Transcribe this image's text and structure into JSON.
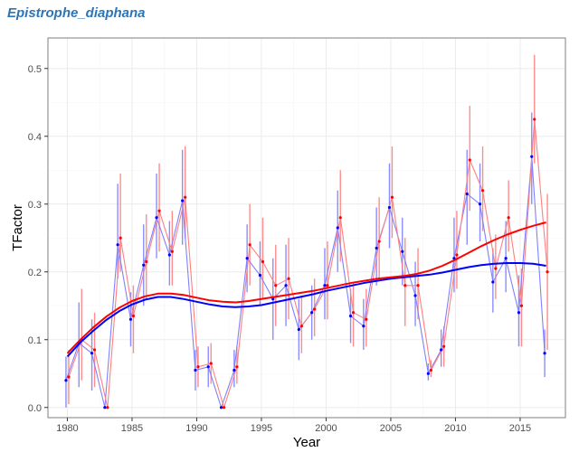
{
  "title": "Epistrophe_diaphana",
  "chart_data": {
    "type": "line",
    "xlabel": "Year",
    "ylabel": "TFactor",
    "xlim": [
      1978.5,
      2018.5
    ],
    "ylim": [
      -0.015,
      0.545
    ],
    "x_ticks": [
      1980,
      1985,
      1990,
      1995,
      2000,
      2005,
      2010,
      2015
    ],
    "y_ticks": [
      0.0,
      0.1,
      0.2,
      0.3,
      0.4,
      0.5
    ],
    "grid": true,
    "colors": {
      "blue_series": "#0000ff",
      "blue_light": "#8080ff",
      "red_series": "#ff0000",
      "red_light": "#ff8080",
      "grid": "#ebebeb",
      "panel_border": "#7f7f7f",
      "title": "#2e75b6"
    },
    "series": [
      {
        "color": "blue",
        "x": [
          1980,
          1981,
          1982,
          1983,
          1984,
          1985,
          1986,
          1987,
          1988,
          1989,
          1990,
          1991,
          1992,
          1993,
          1994,
          1995,
          1996,
          1997,
          1998,
          1999,
          2000,
          2001,
          2002,
          2003,
          2004,
          2005,
          2006,
          2007,
          2008,
          2009,
          2010,
          2011,
          2012,
          2013,
          2014,
          2015,
          2016,
          2017
        ],
        "values": [
          0.04,
          0.095,
          0.08,
          0.0,
          0.24,
          0.13,
          0.21,
          0.28,
          0.225,
          0.305,
          0.055,
          0.06,
          0.0,
          0.055,
          0.22,
          0.195,
          0.16,
          0.18,
          0.115,
          0.14,
          0.18,
          0.265,
          0.135,
          0.12,
          0.235,
          0.295,
          0.23,
          0.165,
          0.05,
          0.085,
          0.22,
          0.315,
          0.3,
          0.185,
          0.22,
          0.14,
          0.37,
          0.08
        ],
        "lower": [
          0.0,
          0.03,
          0.025,
          0.0,
          0.19,
          0.09,
          0.15,
          0.22,
          0.18,
          0.24,
          0.025,
          0.03,
          0.0,
          0.03,
          0.17,
          0.15,
          0.1,
          0.12,
          0.07,
          0.1,
          0.13,
          0.2,
          0.095,
          0.085,
          0.18,
          0.235,
          0.18,
          0.12,
          0.04,
          0.06,
          0.17,
          0.24,
          0.245,
          0.14,
          0.17,
          0.09,
          0.3,
          0.045
        ],
        "upper": [
          0.075,
          0.155,
          0.13,
          0.0,
          0.33,
          0.17,
          0.27,
          0.345,
          0.275,
          0.38,
          0.085,
          0.09,
          0.0,
          0.085,
          0.27,
          0.245,
          0.22,
          0.24,
          0.16,
          0.18,
          0.235,
          0.32,
          0.175,
          0.16,
          0.295,
          0.36,
          0.28,
          0.215,
          0.065,
          0.115,
          0.28,
          0.38,
          0.36,
          0.235,
          0.275,
          0.195,
          0.435,
          0.115
        ],
        "smooth": [
          0.075,
          0.096,
          0.113,
          0.129,
          0.142,
          0.152,
          0.159,
          0.163,
          0.163,
          0.16,
          0.156,
          0.152,
          0.149,
          0.148,
          0.149,
          0.151,
          0.155,
          0.159,
          0.163,
          0.167,
          0.172,
          0.176,
          0.18,
          0.184,
          0.187,
          0.19,
          0.192,
          0.194,
          0.196,
          0.199,
          0.203,
          0.207,
          0.21,
          0.212,
          0.213,
          0.213,
          0.212,
          0.209
        ]
      },
      {
        "color": "red",
        "x": [
          1980,
          1981,
          1982,
          1983,
          1984,
          1985,
          1986,
          1987,
          1988,
          1989,
          1990,
          1991,
          1992,
          1993,
          1994,
          1995,
          1996,
          1997,
          1998,
          1999,
          2000,
          2001,
          2002,
          2003,
          2004,
          2005,
          2006,
          2007,
          2008,
          2009,
          2010,
          2011,
          2012,
          2013,
          2014,
          2015,
          2016,
          2017
        ],
        "values": [
          0.045,
          0.1,
          0.085,
          0.0,
          0.25,
          0.135,
          0.215,
          0.29,
          0.23,
          0.31,
          0.06,
          0.065,
          0.0,
          0.06,
          0.24,
          0.215,
          0.18,
          0.19,
          0.12,
          0.145,
          0.18,
          0.28,
          0.14,
          0.13,
          0.245,
          0.31,
          0.18,
          0.18,
          0.055,
          0.09,
          0.225,
          0.365,
          0.32,
          0.205,
          0.28,
          0.15,
          0.425,
          0.2
        ],
        "lower": [
          0.005,
          0.04,
          0.03,
          0.0,
          0.2,
          0.08,
          0.16,
          0.23,
          0.18,
          0.25,
          0.03,
          0.035,
          0.0,
          0.035,
          0.18,
          0.16,
          0.12,
          0.13,
          0.08,
          0.105,
          0.13,
          0.215,
          0.09,
          0.09,
          0.19,
          0.25,
          0.12,
          0.13,
          0.045,
          0.06,
          0.175,
          0.29,
          0.26,
          0.16,
          0.23,
          0.09,
          0.36,
          0.085
        ],
        "upper": [
          0.085,
          0.175,
          0.14,
          0.0,
          0.345,
          0.18,
          0.285,
          0.36,
          0.29,
          0.385,
          0.09,
          0.095,
          0.0,
          0.09,
          0.3,
          0.28,
          0.24,
          0.25,
          0.165,
          0.19,
          0.245,
          0.35,
          0.185,
          0.175,
          0.31,
          0.385,
          0.25,
          0.235,
          0.07,
          0.12,
          0.29,
          0.445,
          0.385,
          0.255,
          0.335,
          0.205,
          0.52,
          0.315
        ],
        "smooth": [
          0.08,
          0.1,
          0.118,
          0.134,
          0.147,
          0.157,
          0.164,
          0.168,
          0.168,
          0.166,
          0.162,
          0.158,
          0.156,
          0.155,
          0.157,
          0.16,
          0.163,
          0.166,
          0.169,
          0.172,
          0.176,
          0.18,
          0.184,
          0.187,
          0.19,
          0.192,
          0.194,
          0.197,
          0.202,
          0.209,
          0.218,
          0.228,
          0.238,
          0.247,
          0.255,
          0.262,
          0.268,
          0.273
        ]
      }
    ]
  }
}
